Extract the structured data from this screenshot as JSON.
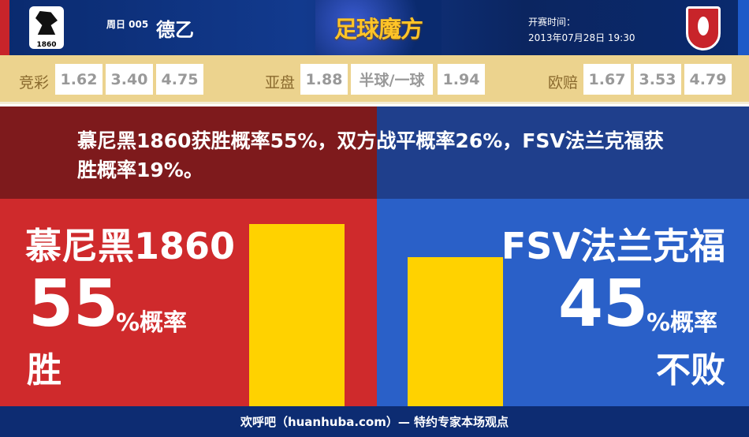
{
  "header": {
    "round": "周日 005",
    "league": "德乙",
    "brand": "足球魔方",
    "kickoff_label": "开赛时间：",
    "kickoff_time": "2013年07月28日 19:30",
    "home_logo_text": "1860"
  },
  "odds": {
    "jingcai_label": "竞彩",
    "jingcai": [
      "1.62",
      "3.40",
      "4.75"
    ],
    "yapan_label": "亚盘",
    "yapan": [
      "1.88",
      "半球/一球",
      "1.94"
    ],
    "ouzhi_label": "欧赔",
    "ouzhi": [
      "1.67",
      "3.53",
      "4.79"
    ]
  },
  "summary": "慕尼黑1860获胜概率55%，双方战平概率26%，FSV法兰克福获胜概率19%。",
  "home": {
    "name": "慕尼黑1860",
    "percent": 55,
    "percent_text": "55",
    "unit": "%概率",
    "outcome": "胜"
  },
  "away": {
    "name": "FSV法兰克福",
    "percent": 45,
    "percent_text": "45",
    "unit": "%概率",
    "outcome": "不败"
  },
  "colors": {
    "home_dark": "#7e1a1c",
    "home": "#cf2a2c",
    "away_dark": "#1f3f8c",
    "away": "#2a60c8",
    "bar": "#ffd200"
  },
  "footer": "欢呼吧（huanhuba.com）— 特约专家本场观点"
}
